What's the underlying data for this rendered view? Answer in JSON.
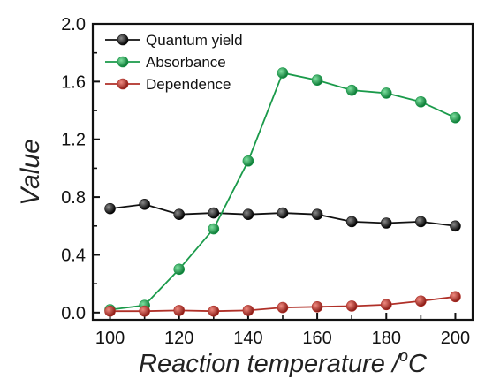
{
  "chart_data": {
    "type": "line",
    "xlabel_main": "Reaction temperature /",
    "xlabel_sup": "o",
    "xlabel_unit": "C",
    "ylabel": "Value",
    "x": [
      100,
      110,
      120,
      130,
      140,
      150,
      160,
      170,
      180,
      190,
      200
    ],
    "xlim": [
      95,
      205
    ],
    "ylim": [
      -0.05,
      2.0
    ],
    "xticks": [
      "100",
      "120",
      "140",
      "160",
      "180",
      "200"
    ],
    "yticks": [
      "0.0",
      "0.4",
      "0.8",
      "1.2",
      "1.6",
      "2.0"
    ],
    "grid": false,
    "legend_position": "top-left",
    "series": [
      {
        "name": "Quantum yield",
        "color": "#111111",
        "values": [
          0.72,
          0.75,
          0.68,
          0.69,
          0.68,
          0.69,
          0.68,
          0.63,
          0.62,
          0.63,
          0.6
        ]
      },
      {
        "name": "Absorbance",
        "color": "#1a9a4a",
        "values": [
          0.02,
          0.05,
          0.3,
          0.58,
          1.05,
          1.66,
          1.61,
          1.54,
          1.52,
          1.46,
          1.35
        ]
      },
      {
        "name": "Dependence",
        "color": "#b03028",
        "values": [
          0.01,
          0.01,
          0.015,
          0.01,
          0.015,
          0.035,
          0.04,
          0.045,
          0.055,
          0.08,
          0.11
        ]
      }
    ]
  }
}
